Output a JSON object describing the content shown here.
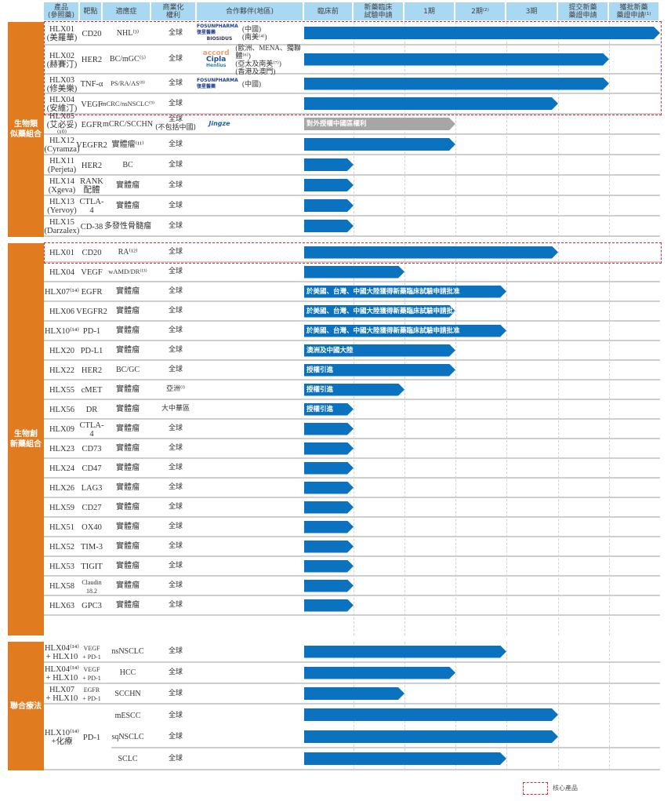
{
  "colors": {
    "section": "#e07b1f",
    "bar": "#0b72c0",
    "bar_licensed_out": "#a6a6a6",
    "header": "#a9d8f2",
    "core_border": "#e0283a"
  },
  "header": {
    "product": "產品\n(參照藥)",
    "target": "靶點",
    "indication": "適應症",
    "rights": "商業化\n權利",
    "partners": "合作夥伴(地區)",
    "stages": [
      "臨床前",
      "新藥臨床\n試驗申請",
      "1期",
      "2期⁽²⁾",
      "3期",
      "提交新藥\n藥證申請",
      "獲批新藥\n藥證申請⁽¹⁾"
    ]
  },
  "sections": [
    {
      "label": "生物類\n似藥組合",
      "rows": [
        {
          "product": "HLX01\n(美羅華)",
          "target": "CD20",
          "indication": "NHL⁽³⁾",
          "rights": "全球",
          "partners": {
            "logos": [
              "FOSUNPHARMA 復星醫藥",
              "BIOSIDUS"
            ],
            "regions": "(中國)\n(南美⁽⁴⁾)"
          },
          "stage": "獲批新藥\n藥證申請⁽¹⁾",
          "core": true
        },
        {
          "product": "HLX02\n(赫賽汀)",
          "target": "HER2",
          "indication": "BC/mGC⁽⁵⁾",
          "rights": "全球",
          "partners": {
            "logos": [
              "accord",
              "Cipla",
              "Henlius"
            ],
            "regions": "(歐洲、MENA、獨聯體⁽⁶⁾)\n(亞太及南美⁽⁷⁾)\n(香港及澳門)"
          },
          "stage": "提交新藥\n藥證申請",
          "core": true
        },
        {
          "product": "HLX03\n(修美樂)",
          "target": "TNF-α",
          "indication": "PS/RA/AS⁽⁸⁾",
          "rights": "全球",
          "partners": {
            "logos": [
              "FOSUNPHARMA 復星醫藥"
            ],
            "regions": "(中國)"
          },
          "stage": "提交新藥\n藥證申請",
          "core": true
        },
        {
          "product": "HLX04\n(安維汀)",
          "target": "VEGF",
          "indication": "mCRC/nsNSCLC⁽⁹⁾",
          "rights": "全球",
          "stage": "3期",
          "core": true
        },
        {
          "product": "HLX05\n(艾必妥)⁽¹⁰⁾",
          "target": "EGFR",
          "indication": "mCRC/SCCHN",
          "rights": "全球\n(不包括中國)",
          "partners": {
            "logos": [
              "Jingze"
            ],
            "regions": ""
          },
          "stage": "1期",
          "bar_label": "對外授權中國區權利",
          "licensed_out": true
        },
        {
          "product": "HLX12\n(Cyramza)",
          "target": "VEGFR2",
          "indication": "實體瘤⁽¹¹⁾",
          "rights": "全球",
          "stage": "1期"
        },
        {
          "product": "HLX11\n(Perjeta)",
          "target": "HER2",
          "indication": "BC",
          "rights": "全球",
          "stage": "臨床前"
        },
        {
          "product": "HLX14\n(Xgeva)",
          "target": "RANK\n配體",
          "indication": "實體瘤",
          "rights": "全球",
          "stage": "臨床前"
        },
        {
          "product": "HLX13\n(Yervoy)",
          "target": "CTLA-4",
          "indication": "實體瘤",
          "rights": "全球",
          "stage": "臨床前"
        },
        {
          "product": "HLX15\n(Darzalex)",
          "target": "CD-38",
          "indication": "多發性骨髓瘤",
          "rights": "全球",
          "stage": "臨床前"
        }
      ]
    },
    {
      "label": "生物創\n新藥組合",
      "rows": [
        {
          "product": "HLX01",
          "target": "CD20",
          "indication": "RA⁽¹²⁾",
          "rights": "全球",
          "stage": "3期",
          "core": true
        },
        {
          "product": "HLX04",
          "target": "VEGF",
          "indication": "wAMD/DR⁽¹³⁾",
          "rights": "全球",
          "stage": "新藥臨床\n試驗申請"
        },
        {
          "product": "HLX07⁽¹⁴⁾",
          "target": "EGFR",
          "indication": "實體瘤",
          "rights": "全球",
          "stage": "2期⁽²⁾",
          "bar_label": "於美國、台灣、中國大陸獲得新藥臨床試驗申請批准"
        },
        {
          "product": "HLX06",
          "target": "VEGFR2",
          "indication": "實體瘤",
          "rights": "全球",
          "stage": "1期",
          "bar_label": "於美國、台灣、中國大陸獲得新藥臨床試驗申請批准"
        },
        {
          "product": "HLX10⁽¹⁴⁾",
          "target": "PD-1",
          "indication": "實體瘤",
          "rights": "全球",
          "stage": "2期⁽²⁾",
          "bar_label": "於美國、台灣、中國大陸獲得新藥臨床試驗申請批准"
        },
        {
          "product": "HLX20",
          "target": "PD-L1",
          "indication": "實體瘤",
          "rights": "全球",
          "stage": "1期",
          "bar_label": "澳洲及中國大陸"
        },
        {
          "product": "HLX22",
          "target": "HER2",
          "indication": "BC/GC",
          "rights": "全球",
          "stage": "1期",
          "bar_label": "授權引進"
        },
        {
          "product": "HLX55",
          "target": "cMET",
          "indication": "實體瘤",
          "rights": "亞洲⁽ⁱ⁾",
          "stage": "新藥臨床\n試驗申請",
          "bar_label": "授權引進"
        },
        {
          "product": "HLX56",
          "target": "DR",
          "indication": "實體瘤",
          "rights": "大中華區",
          "stage": "臨床前",
          "bar_label": "授權引進"
        },
        {
          "product": "HLX09",
          "target": "CTLA-4",
          "indication": "實體瘤",
          "rights": "全球",
          "stage": "臨床前"
        },
        {
          "product": "HLX23",
          "target": "CD73",
          "indication": "實體瘤",
          "rights": "全球",
          "stage": "臨床前"
        },
        {
          "product": "HLX24",
          "target": "CD47",
          "indication": "實體瘤",
          "rights": "全球",
          "stage": "臨床前"
        },
        {
          "product": "HLX26",
          "target": "LAG3",
          "indication": "實體瘤",
          "rights": "全球",
          "stage": "臨床前"
        },
        {
          "product": "HLX59",
          "target": "CD27",
          "indication": "實體瘤",
          "rights": "全球",
          "stage": "臨床前"
        },
        {
          "product": "HLX51",
          "target": "OX40",
          "indication": "實體瘤",
          "rights": "全球",
          "stage": "臨床前"
        },
        {
          "product": "HLX52",
          "target": "TIM-3",
          "indication": "實體瘤",
          "rights": "全球",
          "stage": "臨床前"
        },
        {
          "product": "HLX53",
          "target": "TIGIT",
          "indication": "實體瘤",
          "rights": "全球",
          "stage": "臨床前"
        },
        {
          "product": "HLX58",
          "target": "Claudin 18.2",
          "indication": "實體瘤",
          "rights": "全球",
          "stage": "臨床前"
        },
        {
          "product": "HLX63",
          "target": "GPC3",
          "indication": "實體瘤",
          "rights": "全球",
          "stage": "臨床前"
        }
      ]
    },
    {
      "label": "聯合療法",
      "rows": [
        {
          "product": "HLX04⁽¹⁴⁾\n+ HLX10",
          "target": "VEGF\n+ PD-1",
          "indication": "nsNSCLC",
          "rights": "全球",
          "stage": "2期⁽²⁾"
        },
        {
          "product": "HLX04⁽¹⁴⁾\n+ HLX10",
          "target": "VEGF\n+ PD-1",
          "indication": "HCC",
          "rights": "全球",
          "stage": "1期"
        },
        {
          "product": "HLX07\n+ HLX10",
          "target": "EGFR\n+ PD-1",
          "indication": "SCCHN",
          "rights": "全球",
          "stage": "新藥臨床\n試驗申請"
        },
        {
          "product": "HLX10⁽¹⁴⁾\n+化療",
          "target": "PD-1",
          "indication": "mESCC",
          "rights": "全球",
          "stage": "3期"
        },
        {
          "indication": "sqNSCLC",
          "rights": "全球",
          "stage": "3期"
        },
        {
          "indication": "SCLC",
          "rights": "全球",
          "stage": "2期⁽²⁾"
        }
      ]
    }
  ],
  "legend": {
    "core_label": "核心產品"
  }
}
